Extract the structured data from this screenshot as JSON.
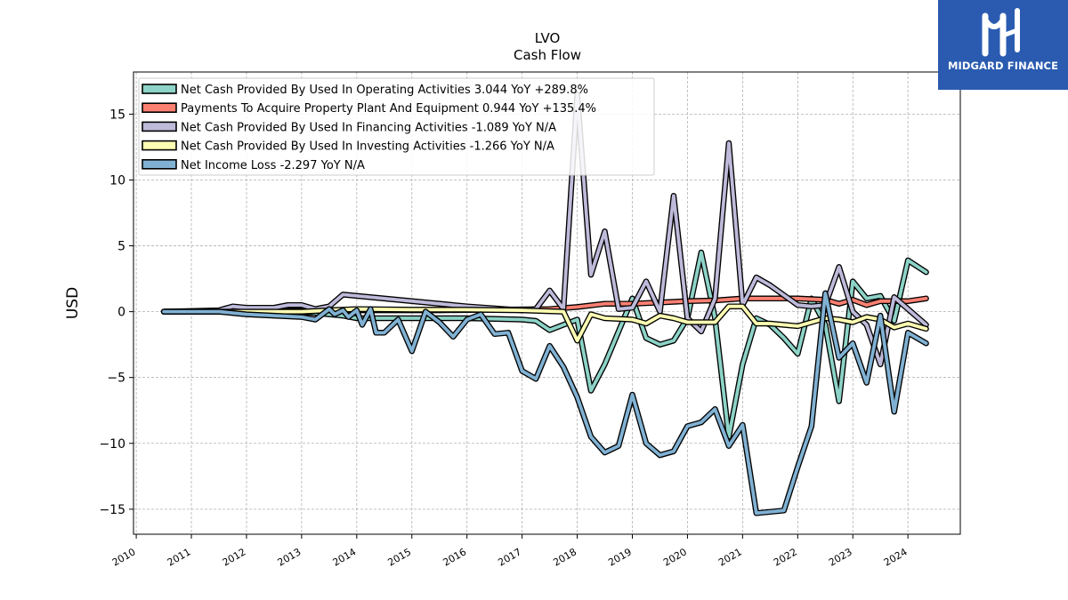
{
  "brand": {
    "name": "MIDGARD FINANCE",
    "bg_color": "#2a5bb0"
  },
  "chart_data": {
    "type": "line",
    "title": "LVO",
    "subtitle": "Cash Flow",
    "xlabel": "",
    "ylabel": "USD",
    "xlim": [
      2009.95,
      2024.95
    ],
    "ylim": [
      -16.9,
      18.2
    ],
    "yticks": [
      -15,
      -10,
      -5,
      0,
      5,
      10,
      15
    ],
    "xticks": [
      2010,
      2011,
      2012,
      2013,
      2014,
      2015,
      2016,
      2017,
      2018,
      2019,
      2020,
      2021,
      2022,
      2023,
      2024
    ],
    "grid": true,
    "legend_position": "top-left",
    "series": [
      {
        "name": "Net Cash Provided By Used In Operating Activities  3.044 YoY +289.8%",
        "color": "#8dd3c7",
        "points": [
          [
            2010.5,
            0
          ],
          [
            2011.0,
            0
          ],
          [
            2011.5,
            0
          ],
          [
            2011.75,
            0
          ],
          [
            2012.0,
            0
          ],
          [
            2012.5,
            0
          ],
          [
            2013.0,
            0
          ],
          [
            2013.25,
            -0.1
          ],
          [
            2013.5,
            -0.2
          ],
          [
            2013.75,
            -0.3
          ],
          [
            2014.0,
            -0.5
          ],
          [
            2014.25,
            -0.5
          ],
          [
            2015.0,
            -0.5
          ],
          [
            2016.0,
            -0.5
          ],
          [
            2017.0,
            -0.6
          ],
          [
            2017.25,
            -0.7
          ],
          [
            2017.5,
            -1.4
          ],
          [
            2017.75,
            -1.0
          ],
          [
            2018.0,
            -0.6
          ],
          [
            2018.25,
            -6.0
          ],
          [
            2018.5,
            -4.0
          ],
          [
            2018.75,
            -1.5
          ],
          [
            2019.0,
            1.0
          ],
          [
            2019.25,
            -2.0
          ],
          [
            2019.5,
            -2.5
          ],
          [
            2019.75,
            -2.2
          ],
          [
            2020.0,
            -0.5
          ],
          [
            2020.25,
            4.5
          ],
          [
            2020.5,
            -0.5
          ],
          [
            2020.75,
            -9.5
          ],
          [
            2021.0,
            -4.0
          ],
          [
            2021.25,
            -0.5
          ],
          [
            2021.5,
            -1.0
          ],
          [
            2021.75,
            -2.0
          ],
          [
            2022.0,
            -3.2
          ],
          [
            2022.25,
            1.0
          ],
          [
            2022.5,
            -1.0
          ],
          [
            2022.75,
            -6.8
          ],
          [
            2023.0,
            2.3
          ],
          [
            2023.25,
            1.0
          ],
          [
            2023.5,
            1.2
          ],
          [
            2023.75,
            -0.7
          ],
          [
            2024.0,
            3.9
          ],
          [
            2024.33,
            3.0
          ]
        ]
      },
      {
        "name": "Payments To Acquire Property Plant And Equipment  0.944 YoY +135.4%",
        "color": "#fb8072",
        "points": [
          [
            2010.5,
            0
          ],
          [
            2011.5,
            0.05
          ],
          [
            2012.5,
            0.08
          ],
          [
            2013.5,
            0.1
          ],
          [
            2014.5,
            0.1
          ],
          [
            2015.5,
            0.1
          ],
          [
            2016.5,
            0.15
          ],
          [
            2017.5,
            0.2
          ],
          [
            2018.0,
            0.35
          ],
          [
            2018.5,
            0.6
          ],
          [
            2019.0,
            0.6
          ],
          [
            2019.5,
            0.7
          ],
          [
            2020.0,
            0.8
          ],
          [
            2020.5,
            0.85
          ],
          [
            2021.0,
            1.0
          ],
          [
            2021.5,
            1.0
          ],
          [
            2022.0,
            1.0
          ],
          [
            2022.5,
            0.9
          ],
          [
            2022.75,
            0.6
          ],
          [
            2023.0,
            0.9
          ],
          [
            2023.25,
            0.5
          ],
          [
            2023.5,
            0.8
          ],
          [
            2024.0,
            0.8
          ],
          [
            2024.33,
            1.0
          ]
        ]
      },
      {
        "name": "Net Cash Provided By Used In Financing Activities  -1.089 YoY N/A",
        "color": "#bebada",
        "points": [
          [
            2010.5,
            0
          ],
          [
            2011.5,
            0.1
          ],
          [
            2011.75,
            0.4
          ],
          [
            2012.0,
            0.3
          ],
          [
            2012.5,
            0.3
          ],
          [
            2012.75,
            0.5
          ],
          [
            2013.0,
            0.5
          ],
          [
            2013.25,
            0.2
          ],
          [
            2013.5,
            0.4
          ],
          [
            2013.75,
            1.3
          ],
          [
            2016.0,
            0.4
          ],
          [
            2017.0,
            0.1
          ],
          [
            2017.25,
            0.2
          ],
          [
            2017.5,
            1.6
          ],
          [
            2017.75,
            0.2
          ],
          [
            2018.0,
            16.5
          ],
          [
            2018.25,
            2.8
          ],
          [
            2018.5,
            6.1
          ],
          [
            2018.75,
            0.2
          ],
          [
            2019.0,
            0.3
          ],
          [
            2019.25,
            2.3
          ],
          [
            2019.5,
            0.0
          ],
          [
            2019.75,
            8.8
          ],
          [
            2020.0,
            -0.5
          ],
          [
            2020.25,
            -1.5
          ],
          [
            2020.5,
            1.0
          ],
          [
            2020.75,
            12.8
          ],
          [
            2021.0,
            0.5
          ],
          [
            2021.25,
            2.6
          ],
          [
            2021.5,
            2.0
          ],
          [
            2022.0,
            0.5
          ],
          [
            2022.25,
            0.4
          ],
          [
            2022.5,
            0.5
          ],
          [
            2022.75,
            3.4
          ],
          [
            2023.0,
            0.0
          ],
          [
            2023.25,
            -1.0
          ],
          [
            2023.5,
            -4.0
          ],
          [
            2023.75,
            1.1
          ],
          [
            2024.0,
            0.2
          ],
          [
            2024.33,
            -1.0
          ]
        ]
      },
      {
        "name": "Net Cash Provided By Used In Investing Activities  -1.266 YoY N/A",
        "color": "#ffffb3",
        "points": [
          [
            2010.5,
            0
          ],
          [
            2012.0,
            0
          ],
          [
            2013.0,
            0
          ],
          [
            2013.5,
            0.1
          ],
          [
            2014.0,
            0.2
          ],
          [
            2015.0,
            0.15
          ],
          [
            2016.0,
            0.15
          ],
          [
            2017.0,
            0.1
          ],
          [
            2017.75,
            0.0
          ],
          [
            2018.0,
            -2.2
          ],
          [
            2018.25,
            -0.2
          ],
          [
            2018.5,
            -0.5
          ],
          [
            2019.0,
            -0.6
          ],
          [
            2019.25,
            -0.9
          ],
          [
            2019.5,
            -0.3
          ],
          [
            2019.75,
            -0.5
          ],
          [
            2020.0,
            -0.8
          ],
          [
            2020.5,
            -0.8
          ],
          [
            2020.75,
            0.4
          ],
          [
            2021.0,
            0.4
          ],
          [
            2021.25,
            -0.9
          ],
          [
            2021.5,
            -0.9
          ],
          [
            2022.0,
            -1.1
          ],
          [
            2022.5,
            -0.5
          ],
          [
            2022.75,
            -0.6
          ],
          [
            2023.0,
            -0.8
          ],
          [
            2023.25,
            -0.4
          ],
          [
            2023.5,
            -0.6
          ],
          [
            2023.75,
            -1.2
          ],
          [
            2024.0,
            -0.9
          ],
          [
            2024.33,
            -1.3
          ]
        ]
      },
      {
        "name": "Net Income Loss  -2.297 YoY N/A",
        "color": "#80b1d3",
        "points": [
          [
            2010.5,
            0
          ],
          [
            2011.0,
            0
          ],
          [
            2011.5,
            0
          ],
          [
            2011.75,
            -0.1
          ],
          [
            2012.0,
            -0.2
          ],
          [
            2012.5,
            -0.3
          ],
          [
            2013.0,
            -0.4
          ],
          [
            2013.25,
            -0.6
          ],
          [
            2013.5,
            0.2
          ],
          [
            2013.6,
            -0.2
          ],
          [
            2013.75,
            0.1
          ],
          [
            2013.85,
            -0.4
          ],
          [
            2014.0,
            0.1
          ],
          [
            2014.1,
            -1.0
          ],
          [
            2014.25,
            0.2
          ],
          [
            2014.35,
            -1.6
          ],
          [
            2014.5,
            -1.6
          ],
          [
            2014.75,
            -0.6
          ],
          [
            2015.0,
            -3.0
          ],
          [
            2015.25,
            0.0
          ],
          [
            2015.5,
            -0.8
          ],
          [
            2015.75,
            -1.9
          ],
          [
            2016.0,
            -0.6
          ],
          [
            2016.25,
            -0.2
          ],
          [
            2016.5,
            -1.7
          ],
          [
            2016.75,
            -1.6
          ],
          [
            2017.0,
            -4.5
          ],
          [
            2017.25,
            -5.1
          ],
          [
            2017.5,
            -2.6
          ],
          [
            2017.75,
            -4.2
          ],
          [
            2018.0,
            -6.5
          ],
          [
            2018.25,
            -9.5
          ],
          [
            2018.5,
            -10.7
          ],
          [
            2018.75,
            -10.2
          ],
          [
            2019.0,
            -6.3
          ],
          [
            2019.25,
            -10.0
          ],
          [
            2019.5,
            -10.9
          ],
          [
            2019.75,
            -10.6
          ],
          [
            2020.0,
            -8.7
          ],
          [
            2020.25,
            -8.4
          ],
          [
            2020.5,
            -7.4
          ],
          [
            2020.75,
            -10.2
          ],
          [
            2021.0,
            -8.6
          ],
          [
            2021.25,
            -15.3
          ],
          [
            2021.5,
            -15.2
          ],
          [
            2021.75,
            -15.1
          ],
          [
            2022.0,
            -11.8
          ],
          [
            2022.25,
            -8.7
          ],
          [
            2022.5,
            1.4
          ],
          [
            2022.75,
            -3.5
          ],
          [
            2023.0,
            -2.4
          ],
          [
            2023.25,
            -5.4
          ],
          [
            2023.5,
            -0.3
          ],
          [
            2023.75,
            -7.6
          ],
          [
            2024.0,
            -1.6
          ],
          [
            2024.33,
            -2.4
          ]
        ]
      }
    ]
  }
}
